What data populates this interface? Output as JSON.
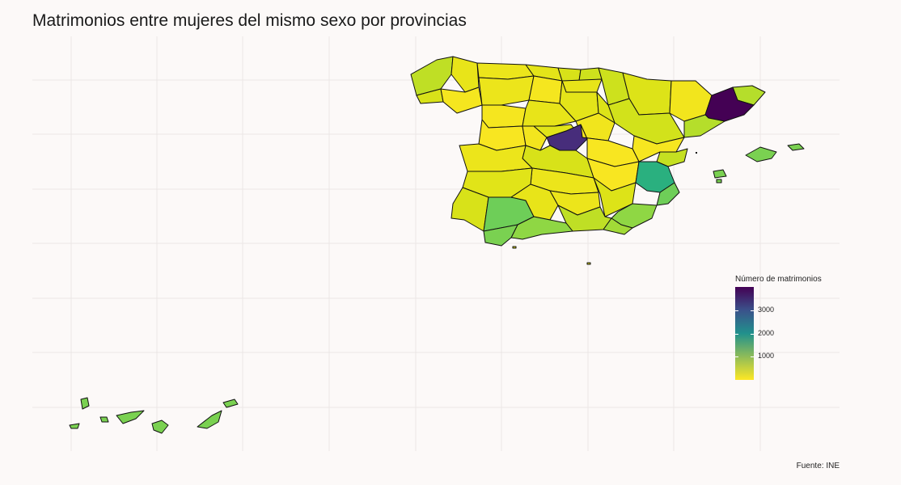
{
  "title": "Matrimonios entre mujeres del mismo sexo por provincias",
  "caption": "Fuente: INE",
  "legend": {
    "title": "Número de matrimonios",
    "ticks": [
      "1000",
      "2000",
      "3000"
    ],
    "tick_values": [
      1000,
      2000,
      3000
    ],
    "min": 0,
    "max": 4000,
    "colors": {
      "low": "#fde725",
      "mid": "#21918c",
      "high": "#440154"
    }
  },
  "map": {
    "grid": true,
    "highlights": [
      {
        "region": "Barcelona",
        "level": "max"
      },
      {
        "region": "Madrid",
        "level": "high"
      },
      {
        "region": "Valencia",
        "level": "mid"
      },
      {
        "region": "Sevilla",
        "level": "mid-low"
      }
    ]
  }
}
